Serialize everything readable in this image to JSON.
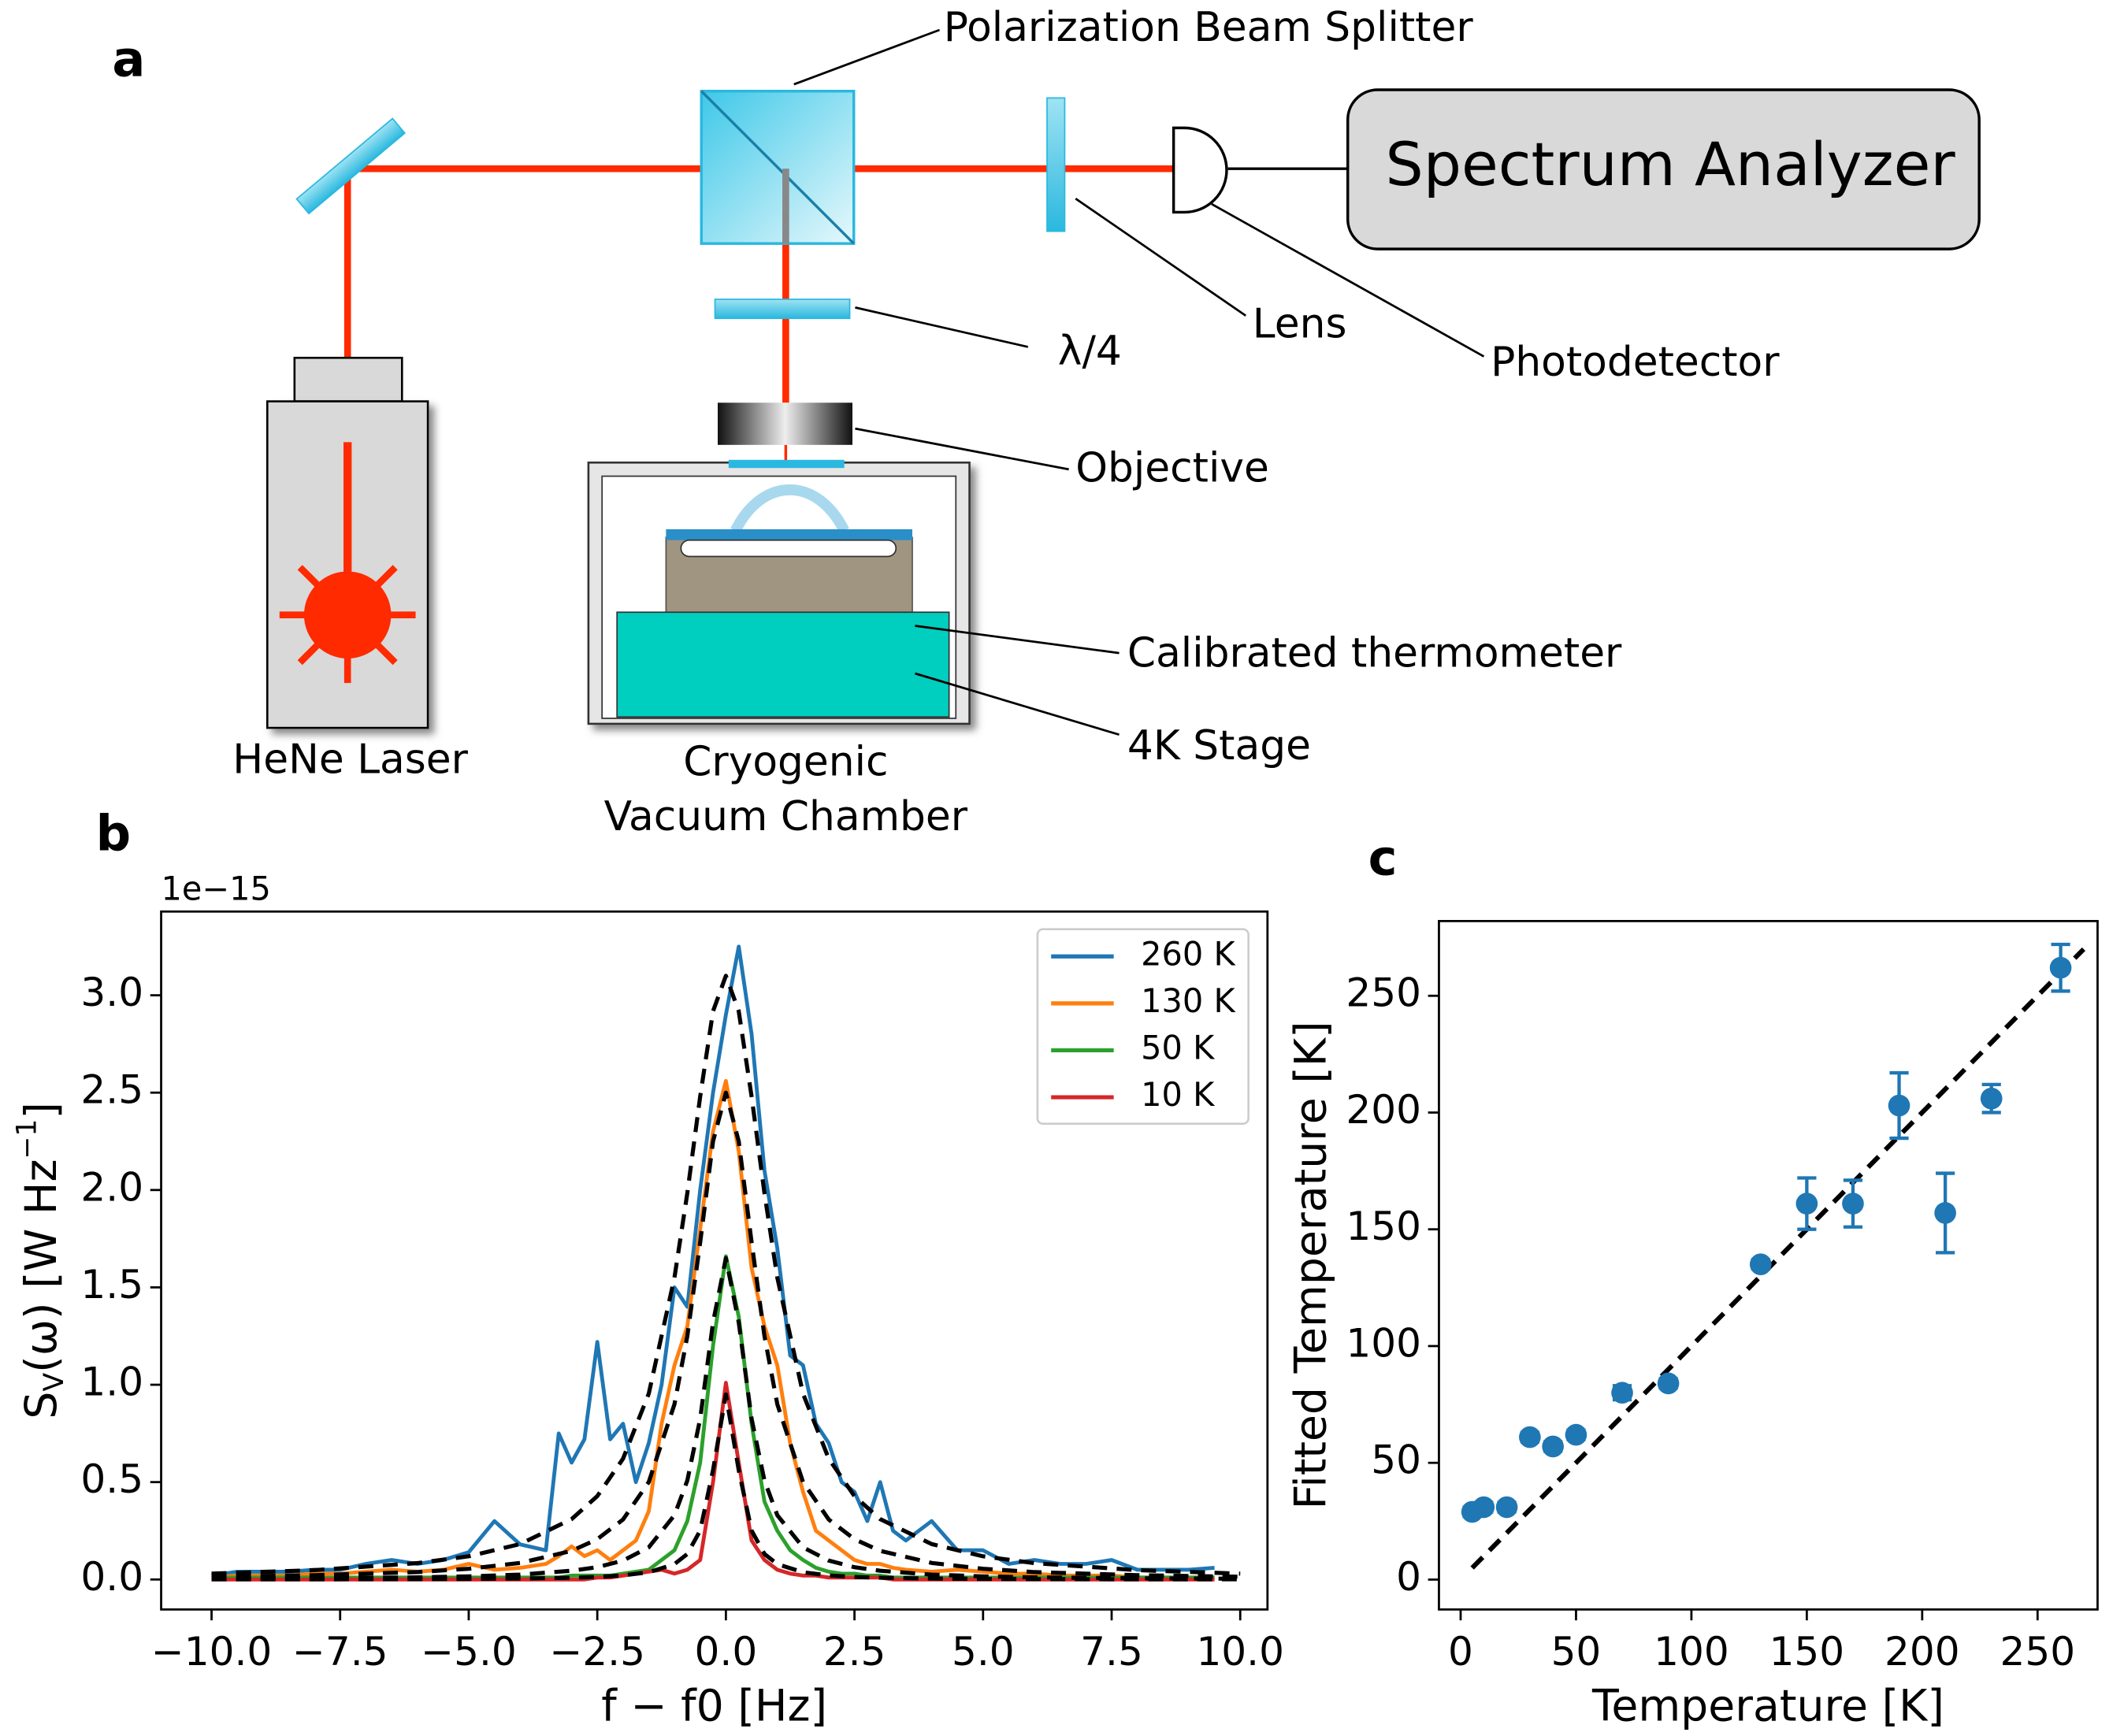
{
  "panel_labels": [
    "a",
    "b",
    "c"
  ],
  "diagram": {
    "beam_splitter": "Polarization Beam Splitter",
    "spectrum_analyzer": "Spectrum Analyzer",
    "lens": "Lens",
    "photodetector": "Photodetector",
    "quarter_wave": "λ/4",
    "objective": "Objective",
    "thermometer": "Calibrated thermometer",
    "stage": "4K Stage",
    "laser": "HeNe Laser",
    "chamber": [
      "Cryogenic",
      "Vacuum Chamber"
    ]
  },
  "chart_data": [
    {
      "type": "line",
      "offset_text": "1e−15",
      "xlabel": "f − f0 [Hz]",
      "ylabel": {
        "base": "S",
        "sub": "V",
        "text": "(ω) [W Hz",
        "sup": "−1",
        "end": "]"
      },
      "legend": "upper right",
      "grid": false,
      "xlim": [
        -10.98,
        10.53
      ],
      "ylim": [
        -0.154,
        3.43
      ],
      "xticks": [
        {
          "value": -10,
          "label": "−10.0"
        },
        {
          "value": -7.5,
          "label": "−7.5"
        },
        {
          "value": -5,
          "label": "−5.0"
        },
        {
          "value": -2.5,
          "label": "−2.5"
        },
        {
          "value": 0,
          "label": "0.0"
        },
        2.5,
        {
          "value": 5,
          "label": "5.0"
        },
        7.5,
        {
          "value": 10,
          "label": "10.0"
        }
      ],
      "yticks": [
        {
          "value": 0,
          "label": "0.0"
        },
        0.5,
        {
          "value": 1,
          "label": "1.0"
        },
        1.5,
        {
          "value": 2,
          "label": "2.0"
        },
        2.5,
        {
          "value": 3,
          "label": "3.0"
        }
      ],
      "x": [
        -10,
        -9.5,
        -9,
        -8.5,
        -8,
        -7.5,
        -7,
        -6.5,
        -6,
        -5.5,
        -5,
        -4.5,
        -4,
        -3.5,
        -3.25,
        -3,
        -2.75,
        -2.5,
        -2.25,
        -2,
        -1.75,
        -1.5,
        -1.25,
        -1,
        -0.75,
        -0.5,
        -0.25,
        0,
        0.25,
        0.5,
        0.75,
        1,
        1.25,
        1.5,
        1.75,
        2,
        2.25,
        2.5,
        2.75,
        3,
        3.25,
        3.5,
        4,
        4.5,
        5,
        5.5,
        6,
        6.5,
        7,
        7.5,
        8,
        8.5,
        9,
        9.5
      ],
      "series": [
        {
          "name": "260 K",
          "color": "#1f77b4",
          "values": [
            0.02,
            0.04,
            0.04,
            0.04,
            0.05,
            0.05,
            0.08,
            0.1,
            0.08,
            0.1,
            0.14,
            0.3,
            0.18,
            0.15,
            0.75,
            0.6,
            0.72,
            1.22,
            0.72,
            0.8,
            0.5,
            0.7,
            1.0,
            1.5,
            1.4,
            2.0,
            2.5,
            2.9,
            3.25,
            2.8,
            2.1,
            1.7,
            1.15,
            1.1,
            0.8,
            0.7,
            0.5,
            0.45,
            0.3,
            0.5,
            0.25,
            0.2,
            0.3,
            0.15,
            0.15,
            0.08,
            0.1,
            0.08,
            0.08,
            0.1,
            0.05,
            0.05,
            0.05,
            0.06
          ]
        },
        {
          "name": "130 K",
          "color": "#ff7f0e",
          "values": [
            0.01,
            0.02,
            0.02,
            0.02,
            0.03,
            0.03,
            0.04,
            0.05,
            0.04,
            0.05,
            0.08,
            0.05,
            0.06,
            0.08,
            0.12,
            0.17,
            0.12,
            0.15,
            0.1,
            0.15,
            0.2,
            0.35,
            0.8,
            1.1,
            1.3,
            1.8,
            2.3,
            2.56,
            2.2,
            1.6,
            1.3,
            1.1,
            0.7,
            0.45,
            0.25,
            0.2,
            0.15,
            0.1,
            0.08,
            0.08,
            0.06,
            0.05,
            0.04,
            0.05,
            0.04,
            0.03,
            0.03,
            0.02,
            0.02,
            0.02,
            0.01,
            0.01,
            0.01,
            0.01
          ]
        },
        {
          "name": "50 K",
          "color": "#2ca02c",
          "values": [
            0.01,
            0.01,
            0.01,
            0.01,
            0.01,
            0.01,
            0.01,
            0.01,
            0.01,
            0.01,
            0.01,
            0.01,
            0.01,
            0.01,
            0.01,
            0.02,
            0.02,
            0.02,
            0.02,
            0.03,
            0.04,
            0.05,
            0.1,
            0.15,
            0.3,
            0.6,
            1.2,
            1.66,
            1.35,
            0.8,
            0.4,
            0.25,
            0.15,
            0.1,
            0.06,
            0.04,
            0.03,
            0.03,
            0.02,
            0.02,
            0.01,
            0.01,
            0.01,
            0.01,
            0.01,
            0.01,
            0.01,
            0.01,
            0.01,
            0.01,
            0.01,
            0.01,
            0.01,
            0.01
          ]
        },
        {
          "name": "10 K",
          "color": "#d62728",
          "values": [
            0,
            0,
            0,
            0,
            0,
            0,
            0,
            0,
            0,
            0,
            0,
            0,
            0,
            0,
            0,
            0,
            0,
            0.01,
            0.01,
            0.02,
            0.03,
            0.04,
            0.05,
            0.03,
            0.05,
            0.1,
            0.5,
            1.01,
            0.6,
            0.2,
            0.1,
            0.05,
            0.03,
            0.02,
            0.02,
            0.01,
            0.01,
            0.01,
            0.01,
            0.01,
            0,
            0,
            0,
            0,
            0,
            0,
            0,
            0,
            0,
            0,
            0,
            0,
            0,
            0
          ]
        },
        {
          "color": "#000000",
          "dashed": true,
          "x": [
            -10,
            -8,
            -6,
            -5,
            -4,
            -3,
            -2.5,
            -2,
            -1.5,
            -1,
            -0.75,
            -0.5,
            -0.25,
            0,
            0.25,
            0.5,
            0.75,
            1,
            1.5,
            2,
            2.5,
            3,
            4,
            5,
            6,
            8,
            10
          ],
          "values": [
            0.03,
            0.048,
            0.084,
            0.119,
            0.182,
            0.31,
            0.428,
            0.62,
            0.954,
            1.55,
            1.984,
            2.48,
            2.918,
            3.1,
            2.918,
            2.48,
            1.984,
            1.55,
            0.954,
            0.62,
            0.428,
            0.31,
            0.182,
            0.119,
            0.084,
            0.048,
            0.03
          ]
        },
        {
          "color": "#000000",
          "dashed": true,
          "x": [
            -10,
            -8,
            -6,
            -5,
            -4,
            -3,
            -2.5,
            -2,
            -1.5,
            -1,
            -0.75,
            -0.5,
            -0.25,
            0,
            0.25,
            0.5,
            0.75,
            1,
            1.5,
            2,
            2.5,
            3,
            4,
            5,
            6,
            8,
            10
          ],
          "values": [
            0.014,
            0.022,
            0.038,
            0.055,
            0.085,
            0.147,
            0.207,
            0.308,
            0.5,
            0.9,
            1.25,
            1.731,
            2.25,
            2.5,
            2.25,
            1.731,
            1.25,
            0.9,
            0.5,
            0.308,
            0.207,
            0.147,
            0.085,
            0.055,
            0.038,
            0.022,
            0.014
          ]
        },
        {
          "color": "#000000",
          "dashed": true,
          "x": [
            -10,
            -8,
            -6,
            -5,
            -4,
            -3,
            -2.5,
            -2,
            -1.5,
            -1,
            -0.75,
            -0.5,
            -0.25,
            0,
            0.25,
            0.5,
            0.75,
            1,
            1.5,
            2,
            2.5,
            3,
            4,
            5,
            6,
            8,
            10
          ],
          "values": [
            0.004,
            0.006,
            0.011,
            0.016,
            0.025,
            0.045,
            0.063,
            0.097,
            0.165,
            0.33,
            0.508,
            0.825,
            1.32,
            1.65,
            1.32,
            0.825,
            0.508,
            0.33,
            0.165,
            0.097,
            0.063,
            0.045,
            0.025,
            0.016,
            0.011,
            0.006,
            0.004
          ]
        },
        {
          "color": "#000000",
          "dashed": true,
          "x": [
            -10,
            -8,
            -6,
            -5,
            -4,
            -3,
            -2.5,
            -2,
            -1.5,
            -1,
            -0.75,
            -0.5,
            -0.25,
            0,
            0.25,
            0.5,
            0.75,
            1,
            1.5,
            2,
            2.5,
            3,
            4,
            5,
            6,
            8,
            10
          ],
          "values": [
            0.001,
            0.001,
            0.002,
            0.003,
            0.005,
            0.009,
            0.013,
            0.021,
            0.037,
            0.079,
            0.131,
            0.251,
            0.561,
            0.95,
            0.561,
            0.251,
            0.131,
            0.079,
            0.037,
            0.021,
            0.013,
            0.009,
            0.005,
            0.003,
            0.002,
            0.001,
            0.001
          ]
        }
      ]
    },
    {
      "type": "scatter",
      "xlabel": "Temperature [K]",
      "ylabel": "Fitted Temperature [K]",
      "grid": false,
      "color": "#1f77b4",
      "xlim": [
        -9.4,
        276
      ],
      "ylim": [
        -12.8,
        282
      ],
      "xticks": [
        0,
        50,
        100,
        150,
        200,
        250
      ],
      "yticks": [
        0,
        50,
        100,
        150,
        200,
        250
      ],
      "x": [
        5,
        10,
        20,
        30,
        40,
        50,
        70,
        90,
        130,
        150,
        170,
        190,
        210,
        230,
        260
      ],
      "values": [
        29,
        31,
        31,
        61,
        57,
        62,
        80,
        84,
        135,
        161,
        161,
        203,
        157,
        206,
        262
      ],
      "errors": [
        2,
        2,
        2,
        2,
        2,
        2,
        3,
        2,
        2,
        11,
        10,
        14,
        17,
        6,
        10
      ],
      "fit": {
        "color": "#000000",
        "dashed": true,
        "x": [
          5,
          270
        ],
        "values": [
          5,
          270
        ]
      }
    }
  ]
}
